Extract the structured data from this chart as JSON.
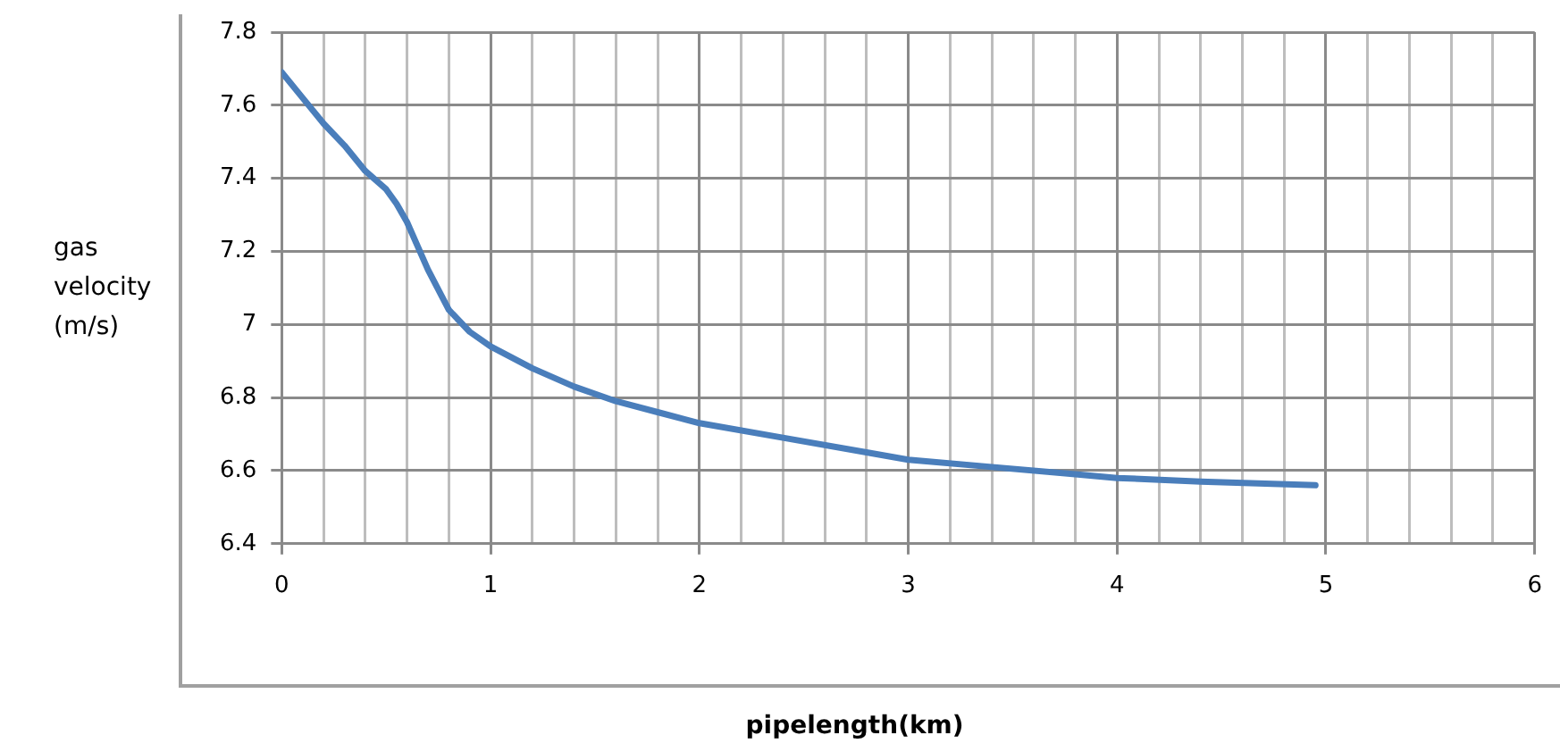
{
  "chart_data": {
    "type": "line",
    "xlabel": "pipelength(km)",
    "ylabel": "gas velocity (m/s)",
    "x": [
      0,
      0.1,
      0.2,
      0.3,
      0.4,
      0.5,
      0.55,
      0.6,
      0.7,
      0.8,
      0.9,
      1.0,
      1.2,
      1.4,
      1.6,
      1.8,
      2.0,
      2.4,
      2.8,
      3.0,
      3.4,
      3.8,
      4.0,
      4.4,
      4.95
    ],
    "series": [
      {
        "color": "#4a7ebb",
        "values": [
          7.69,
          7.62,
          7.55,
          7.49,
          7.42,
          7.37,
          7.33,
          7.28,
          7.15,
          7.04,
          6.98,
          6.94,
          6.88,
          6.83,
          6.79,
          6.76,
          6.73,
          6.69,
          6.65,
          6.63,
          6.61,
          6.59,
          6.58,
          6.57,
          6.56
        ]
      }
    ],
    "xlim": [
      0,
      6
    ],
    "xticks": [
      0,
      {
        "value": 0.2,
        "label": null
      },
      {
        "value": 0.4,
        "label": null
      },
      {
        "value": 0.6,
        "label": null
      },
      {
        "value": 0.8,
        "label": null
      },
      1,
      {
        "value": 1.2,
        "label": null
      },
      {
        "value": 1.4,
        "label": null
      },
      {
        "value": 1.6,
        "label": null
      },
      {
        "value": 1.8,
        "label": null
      },
      2,
      {
        "value": 2.2,
        "label": null
      },
      {
        "value": 2.4,
        "label": null
      },
      {
        "value": 2.6,
        "label": null
      },
      {
        "value": 2.8,
        "label": null
      },
      3,
      {
        "value": 3.2,
        "label": null
      },
      {
        "value": 3.4,
        "label": null
      },
      {
        "value": 3.6,
        "label": null
      },
      {
        "value": 3.8,
        "label": null
      },
      4,
      {
        "value": 4.2,
        "label": null
      },
      {
        "value": 4.4,
        "label": null
      },
      {
        "value": 4.6,
        "label": null
      },
      {
        "value": 4.8,
        "label": null
      },
      5,
      {
        "value": 5.2,
        "label": null
      },
      {
        "value": 5.4,
        "label": null
      },
      {
        "value": 5.6,
        "label": null
      },
      {
        "value": 5.8,
        "label": null
      },
      6
    ],
    "ylim": [
      6.4,
      7.8
    ],
    "yticks": [
      6.4,
      6.6,
      6.8,
      7,
      7.2,
      7.4,
      7.6,
      7.8
    ],
    "grid": true,
    "marker": "none",
    "line_style": "solid",
    "legend": false
  }
}
